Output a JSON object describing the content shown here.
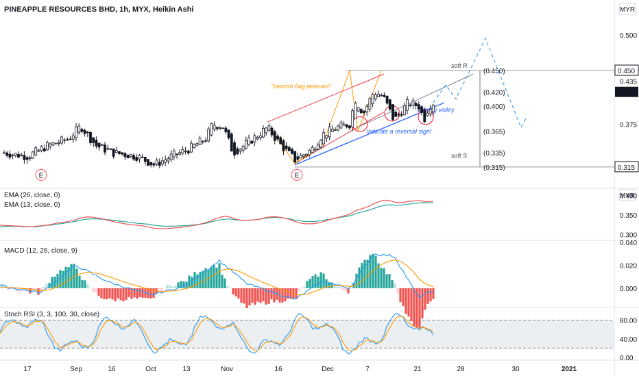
{
  "header": {
    "title": "PINEAPPLE RESOURCES BHD, 1h, MYX, Heikin Ashi",
    "currency": "MYR",
    "currency_ema": "MYR"
  },
  "colors": {
    "up": "#ffffff",
    "down": "#131722",
    "ema26": "#26a69a",
    "ema13": "#ef5350",
    "macd_line": "#2196f3",
    "signal_line": "#ff9800",
    "hist_up_strong": "#26a69a",
    "hist_up_weak": "#b2dfdb",
    "hist_dn_strong": "#ef5350",
    "hist_dn_weak": "#ffcdd2",
    "stoch_k": "#2196f3",
    "stoch_d": "#ff9800",
    "rsi_band": "#eceff1"
  },
  "chart_data": [
    {
      "type": "candlestick",
      "title": "PINEAPPLE RESOURCES BHD, 1h, MYX, Heikin Ashi",
      "y_ticks": [
        "0.500",
        "0.435",
        "0.375"
      ],
      "y_range": [
        0.29,
        0.52
      ],
      "price_labels": [
        {
          "text": "0.450",
          "value": 0.45
        },
        {
          "text": "0.435",
          "value": 0.435
        },
        {
          "text": "0.315",
          "value": 0.315
        }
      ],
      "levels": [
        {
          "text": "(0.450)",
          "value": 0.45,
          "color": "#787b86"
        },
        {
          "text": "(0.420)",
          "value": 0.42,
          "color": "#9598a1"
        },
        {
          "text": "(0.400)",
          "value": 0.4,
          "color": "#2962ff"
        },
        {
          "text": "(0.365)",
          "value": 0.365,
          "color": "#4caf50"
        },
        {
          "text": "(0.335)",
          "value": 0.335,
          "color": "#ff9800"
        },
        {
          "text": "(0.315)",
          "value": 0.315,
          "color": "#f23645"
        }
      ],
      "annotations": [
        {
          "text": "soft R",
          "color": "#434651"
        },
        {
          "text": "soft S",
          "color": "#434651"
        },
        {
          "text": "\"bearish flag pennant\"",
          "color": "#ff9800"
        },
        {
          "text": "3 rising valley",
          "color": "#2962ff"
        },
        {
          "text": "indicate a reversal sign!",
          "color": "#2962ff"
        }
      ],
      "earnings_markers": [
        "E",
        "E"
      ]
    },
    {
      "type": "line",
      "series": [
        {
          "name": "EMA (26, close, 0)"
        },
        {
          "name": "EMA (13, close, 0)"
        }
      ],
      "y_ticks": [
        "0.400",
        "0.350",
        "0.300"
      ],
      "y_range": [
        0.29,
        0.41
      ]
    },
    {
      "type": "bar",
      "series": [
        {
          "name": "MACD (12, 26, close, 9)"
        }
      ],
      "y_ticks": [
        "0.040",
        "0.020",
        "0.000"
      ],
      "y_range": [
        -0.015,
        0.04
      ]
    },
    {
      "type": "line",
      "series": [
        {
          "name": "Stoch RSI (3, 3, 100, 30, close)"
        }
      ],
      "y_ticks": [
        "80.00",
        "40.00",
        "0.00"
      ],
      "y_range": [
        0,
        100
      ],
      "band": [
        20,
        80
      ]
    }
  ],
  "x_axis": {
    "labels": [
      "17",
      "Sep",
      "Oct",
      "13",
      "Nov",
      "16",
      "Dec",
      "7",
      "21",
      "28",
      "30",
      "2021"
    ],
    "extra": [
      "16",
      "Oct"
    ]
  }
}
